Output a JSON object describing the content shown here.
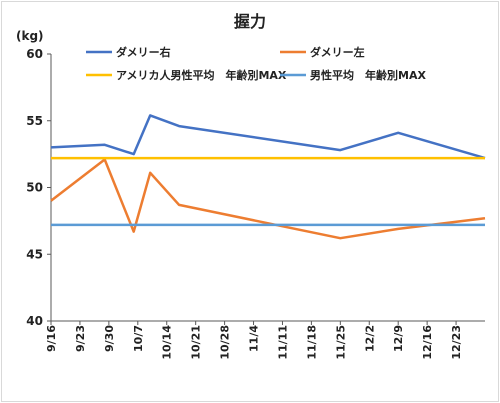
{
  "chart_data": {
    "type": "line",
    "title": "握力",
    "unit_label": "(kg)",
    "ylim": [
      40,
      60
    ],
    "y_ticks": [
      40,
      45,
      50,
      55,
      60
    ],
    "x_ticks": [
      "9/16",
      "9/23",
      "9/30",
      "10/7",
      "10/14",
      "10/21",
      "10/28",
      "11/4",
      "11/11",
      "11/18",
      "11/25",
      "12/2",
      "12/9",
      "12/16",
      "12/23"
    ],
    "x_range": [
      "2000-09-16",
      "2000-12-30"
    ],
    "grid": false,
    "legend_position": "top",
    "series": [
      {
        "name": "ダメリー右",
        "color": "#4472C4",
        "points": [
          {
            "x": "2000-09-16",
            "y": 53.0
          },
          {
            "x": "2000-09-29",
            "y": 53.2
          },
          {
            "x": "2000-10-06",
            "y": 52.5
          },
          {
            "x": "2000-10-10",
            "y": 55.4
          },
          {
            "x": "2000-10-17",
            "y": 54.6
          },
          {
            "x": "2000-11-25",
            "y": 52.8
          },
          {
            "x": "2000-12-09",
            "y": 54.1
          },
          {
            "x": "2000-12-30",
            "y": 52.2
          }
        ]
      },
      {
        "name": "ダメリー左",
        "color": "#ED7D31",
        "points": [
          {
            "x": "2000-09-16",
            "y": 49.0
          },
          {
            "x": "2000-09-29",
            "y": 52.1
          },
          {
            "x": "2000-10-06",
            "y": 46.7
          },
          {
            "x": "2000-10-10",
            "y": 51.1
          },
          {
            "x": "2000-10-17",
            "y": 48.7
          },
          {
            "x": "2000-11-25",
            "y": 46.2
          },
          {
            "x": "2000-12-09",
            "y": 46.9
          },
          {
            "x": "2000-12-30",
            "y": 47.7
          }
        ]
      },
      {
        "name": "アメリカ人男性平均　年齢別MAX",
        "color": "#FFC000",
        "points": [
          {
            "x": "2000-09-16",
            "y": 52.2
          },
          {
            "x": "2000-12-30",
            "y": 52.2
          }
        ]
      },
      {
        "name": "男性平均　年齢別MAX",
        "color": "#5B9BD5",
        "points": [
          {
            "x": "2000-09-16",
            "y": 47.2
          },
          {
            "x": "2000-12-30",
            "y": 47.2
          }
        ]
      }
    ]
  }
}
